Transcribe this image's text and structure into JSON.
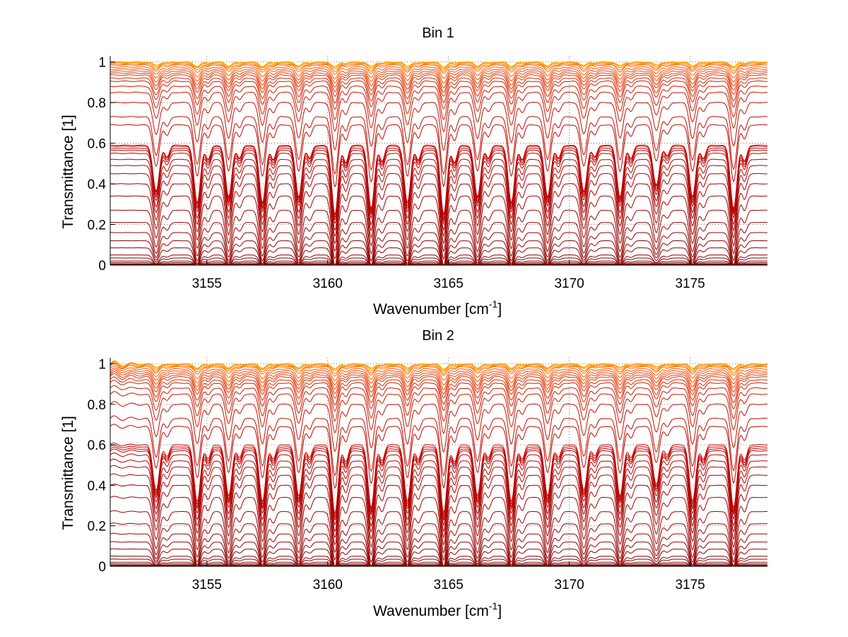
{
  "chart_data": [
    {
      "type": "line",
      "title": "Bin 1",
      "xlabel": "Wavenumber [cm",
      "xlabel_sup": "-1",
      "xlabel_end": "]",
      "ylabel": "Transmittance [1]",
      "xlim": [
        3151,
        3178.2
      ],
      "ylim": [
        0,
        1.03
      ],
      "xticks": [
        3155,
        3160,
        3165,
        3170,
        3175
      ],
      "yticks": [
        0,
        0.2,
        0.4,
        0.6,
        0.8,
        1
      ],
      "ytick_labels": [
        "0",
        "0.2",
        "0.4",
        "0.6",
        "0.8",
        "1"
      ],
      "grid": true,
      "absorption_lines": [
        3152.9,
        3154.6,
        3155.9,
        3157.3,
        3158.8,
        3160.3,
        3161.8,
        3163.3,
        3164.8,
        3166.2,
        3167.6,
        3169.1,
        3170.6,
        3172.1,
        3173.6,
        3175.1,
        3176.8
      ],
      "line_strength": [
        0.8,
        1.0,
        0.9,
        1.0,
        0.9,
        1.2,
        1.1,
        1.0,
        1.2,
        0.9,
        1.0,
        0.9,
        0.8,
        0.9,
        0.7,
        0.9,
        1.1
      ],
      "series_baselines": [
        1.0,
        0.998,
        0.995,
        0.99,
        0.985,
        0.975,
        0.965,
        0.955,
        0.945,
        0.935,
        0.92,
        0.905,
        0.88,
        0.85,
        0.8,
        0.73,
        0.69,
        0.59,
        0.585,
        0.575,
        0.565,
        0.55,
        0.52,
        0.49,
        0.45,
        0.4,
        0.34,
        0.27,
        0.21,
        0.16,
        0.12,
        0.085,
        0.05,
        0.035,
        0.02,
        0.012,
        0.006,
        0.003
      ],
      "series_colors": [
        "#ffb400",
        "#ffa000",
        "#ff8c00",
        "#ff7800",
        "#ff6400",
        "#ff5500",
        "#f84a00",
        "#f04000",
        "#e83800",
        "#e03000",
        "#d82800",
        "#d02000",
        "#cc1800",
        "#c81400",
        "#c41000",
        "#c00c00",
        "#bc0800",
        "#d00000",
        "#c80000",
        "#c00000",
        "#b80000",
        "#b40000",
        "#b00000",
        "#ac0000",
        "#a80000",
        "#a40000",
        "#a00000",
        "#9c0000",
        "#980000",
        "#940000",
        "#900000",
        "#8c0000",
        "#880000",
        "#840000",
        "#800000",
        "#7c0000",
        "#780000",
        "#740000"
      ],
      "left_edge_ripple": false
    },
    {
      "type": "line",
      "title": "Bin 2",
      "xlabel": "Wavenumber [cm",
      "xlabel_sup": "-1",
      "xlabel_end": "]",
      "ylabel": "Transmittance [1]",
      "xlim": [
        3151,
        3178.2
      ],
      "ylim": [
        0,
        1.03
      ],
      "xticks": [
        3155,
        3160,
        3165,
        3170,
        3175
      ],
      "yticks": [
        0,
        0.2,
        0.4,
        0.6,
        0.8,
        1
      ],
      "ytick_labels": [
        "0",
        "0.2",
        "0.4",
        "0.6",
        "0.8",
        "1"
      ],
      "grid": true,
      "absorption_lines": [
        3152.9,
        3154.6,
        3155.9,
        3157.3,
        3158.8,
        3160.3,
        3161.8,
        3163.3,
        3164.8,
        3166.2,
        3167.6,
        3169.1,
        3170.6,
        3172.1,
        3173.6,
        3175.1,
        3176.8
      ],
      "line_strength": [
        0.8,
        1.0,
        0.9,
        1.0,
        0.9,
        1.2,
        1.1,
        1.0,
        1.2,
        0.9,
        1.0,
        0.9,
        0.8,
        0.9,
        0.7,
        1.0,
        1.1
      ],
      "series_baselines": [
        1.0,
        0.998,
        0.995,
        0.99,
        0.985,
        0.975,
        0.965,
        0.955,
        0.945,
        0.935,
        0.92,
        0.905,
        0.88,
        0.85,
        0.8,
        0.73,
        0.69,
        0.6,
        0.59,
        0.58,
        0.57,
        0.55,
        0.52,
        0.49,
        0.45,
        0.4,
        0.34,
        0.27,
        0.21,
        0.16,
        0.12,
        0.085,
        0.05,
        0.035,
        0.02,
        0.012,
        0.006,
        0.003
      ],
      "series_colors": [
        "#ffb400",
        "#ffa000",
        "#ff8c00",
        "#ff7800",
        "#ff6400",
        "#ff5500",
        "#f84a00",
        "#f04000",
        "#e83800",
        "#e03000",
        "#d82800",
        "#d02000",
        "#cc1800",
        "#c81400",
        "#c41000",
        "#c00c00",
        "#bc0800",
        "#d00000",
        "#c80000",
        "#c00000",
        "#b80000",
        "#b40000",
        "#b00000",
        "#ac0000",
        "#a80000",
        "#a40000",
        "#a00000",
        "#9c0000",
        "#980000",
        "#940000",
        "#900000",
        "#8c0000",
        "#880000",
        "#840000",
        "#800000",
        "#7c0000",
        "#780000",
        "#740000"
      ],
      "left_edge_ripple": true
    }
  ]
}
